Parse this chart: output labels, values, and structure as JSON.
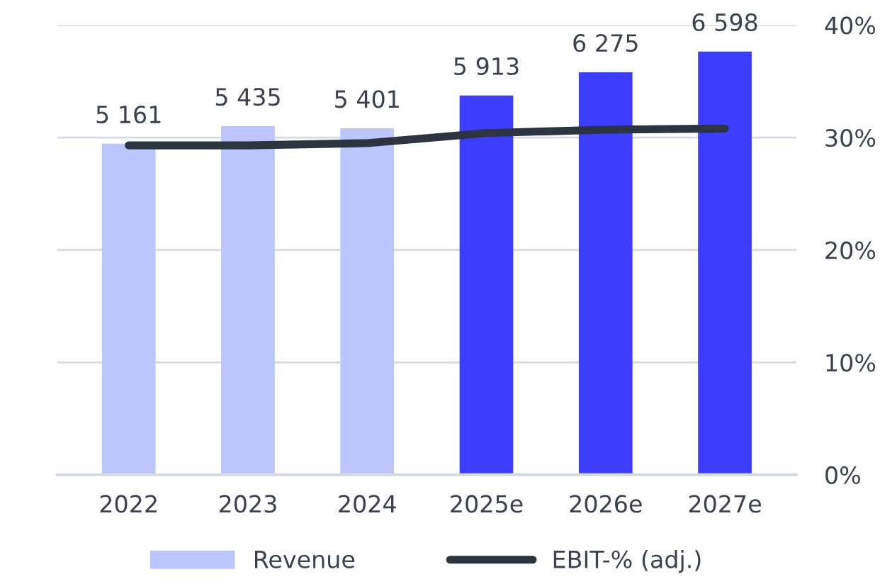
{
  "chart_data": {
    "type": "bar",
    "categories": [
      "2022",
      "2023",
      "2024",
      "2025e",
      "2026e",
      "2027e"
    ],
    "ylim": [
      0,
      7010
    ],
    "y2lim": [
      0,
      40
    ],
    "y2ticks": [
      {
        "value": 0,
        "label": "0%"
      },
      {
        "value": 10,
        "label": "10%"
      },
      {
        "value": 20,
        "label": "20%"
      },
      {
        "value": 30,
        "label": "30%"
      },
      {
        "value": 40,
        "label": "40%"
      }
    ],
    "grid": "y",
    "legend": "bottom",
    "series": [
      {
        "name": "Revenue",
        "color": "#bcc6fd",
        "colors": [
          "#bcc6fd",
          "#bcc6fd",
          "#bcc6fd",
          "#3d3dfd",
          "#3d3dfd",
          "#3d3dfd"
        ],
        "values": [
          5161,
          5435,
          5401,
          5913,
          6275,
          6598
        ],
        "value_labels": [
          "5 161",
          "5 435",
          "5 401",
          "5 913",
          "6 275",
          "6 598"
        ]
      },
      {
        "name": "EBIT-% (adj.)",
        "type": "line",
        "axis": "y2",
        "color": "#2c3440",
        "values": [
          29.3,
          29.3,
          29.5,
          30.4,
          30.7,
          30.8
        ]
      }
    ]
  }
}
